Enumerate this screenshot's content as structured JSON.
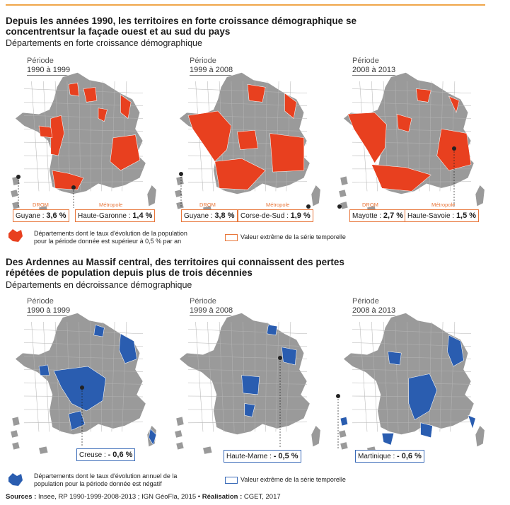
{
  "section1": {
    "title": "Depuis les années 1990, les territoires en forte croissance démographique se concentrentsur la façade ouest et au sud du pays",
    "subtitle": "Départements en forte croissance démographique",
    "maps": [
      {
        "period_label": "Période",
        "period_range": "1990 à 1999",
        "callouts": [
          {
            "name": "Guyane :",
            "value": "3,6 %"
          },
          {
            "name": "Haute-Garonne :",
            "value": "1,4 %"
          }
        ],
        "tags": [
          "DROM",
          "Métropole"
        ]
      },
      {
        "period_label": "Période",
        "period_range": "1999 à 2008",
        "callouts": [
          {
            "name": "Guyane :",
            "value": "3,8 %"
          },
          {
            "name": "Corse-de-Sud :",
            "value": "1,9 %"
          }
        ],
        "tags": [
          "DROM",
          "Métropole"
        ]
      },
      {
        "period_label": "Période",
        "period_range": "2008 à 2013",
        "callouts": [
          {
            "name": "Mayotte :",
            "value": "2,7 %"
          },
          {
            "name": "Haute-Savoie :",
            "value": "1,5 %"
          }
        ],
        "tags": [
          "DROM",
          "Métropole"
        ]
      }
    ],
    "legend_fill_text": "Départements dont le taux d'évolution de la population pour la période donnée est supérieur à 0,5 % par an",
    "legend_box_text": "Valeur extrême de la série temporelle",
    "color": "#e8401f"
  },
  "section2": {
    "title": "Des Ardennes au Massif central, des territoires qui connaissent des pertes répétées de population depuis plus de trois décennies",
    "subtitle": "Départements en décroissance démographique",
    "maps": [
      {
        "period_label": "Période",
        "period_range": "1990 à 1999",
        "callouts": [
          {
            "name": "Creuse :",
            "value": "- 0,6 %"
          }
        ]
      },
      {
        "period_label": "Période",
        "period_range": "1999 à 2008",
        "callouts": [
          {
            "name": "Haute-Marne :",
            "value": "- 0,5 %"
          }
        ]
      },
      {
        "period_label": "Période",
        "period_range": "2008 à 2013",
        "callouts": [
          {
            "name": "Martinique :",
            "value": "- 0,6 %"
          }
        ]
      }
    ],
    "legend_fill_text": "Départements dont le taux d'évolution annuel de la population pour la période donnée est négatif",
    "legend_box_text": "Valeur extrême de la série temporelle",
    "color": "#2a5db0"
  },
  "base_color": "#9a9a9a",
  "sources": {
    "label": "Sources :",
    "text": "Insee, RP 1990-1999-2008-2013 ; IGN GéoFla, 2015 •",
    "realisation_label": "Réalisation :",
    "realisation": "CGET, 2017"
  }
}
